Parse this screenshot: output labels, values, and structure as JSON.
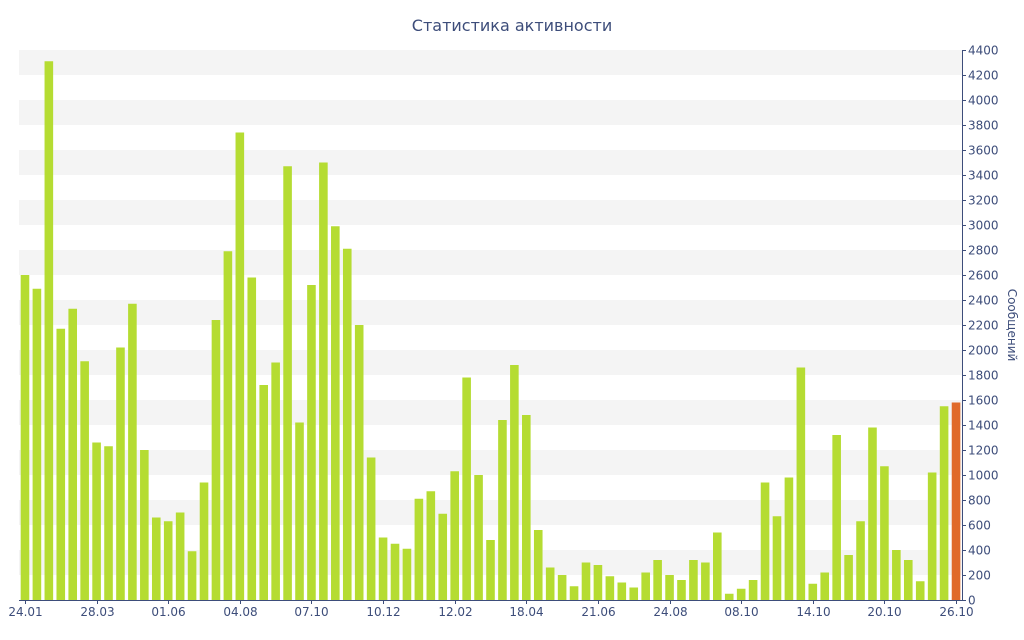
{
  "chart_data": {
    "type": "bar",
    "title": "Статистика активности",
    "xlabel": "",
    "ylabel": "Сообщений",
    "ylim": [
      0,
      4400
    ],
    "y_ticks": [
      0,
      200,
      400,
      600,
      800,
      1000,
      1200,
      1400,
      1600,
      1800,
      2000,
      2200,
      2400,
      2600,
      2800,
      3000,
      3200,
      3400,
      3600,
      3800,
      4000,
      4200,
      4400
    ],
    "x_tick_labels": [
      {
        "index": 0,
        "label": "24.01"
      },
      {
        "index": 6,
        "label": "28.03"
      },
      {
        "index": 12,
        "label": "01.06"
      },
      {
        "index": 18,
        "label": "04.08"
      },
      {
        "index": 24,
        "label": "07.10"
      },
      {
        "index": 30,
        "label": "10.12"
      },
      {
        "index": 36,
        "label": "12.02"
      },
      {
        "index": 42,
        "label": "18.04"
      },
      {
        "index": 48,
        "label": "21.06"
      },
      {
        "index": 54,
        "label": "24.08"
      },
      {
        "index": 60,
        "label": "08.10"
      },
      {
        "index": 66,
        "label": "14.10"
      },
      {
        "index": 72,
        "label": "20.10"
      },
      {
        "index": 78,
        "label": "26.10"
      }
    ],
    "values": [
      2600,
      2490,
      4310,
      2170,
      2330,
      1910,
      1260,
      1230,
      2020,
      2370,
      1200,
      660,
      630,
      700,
      390,
      940,
      2240,
      2790,
      3740,
      2580,
      1720,
      1900,
      3470,
      1420,
      2520,
      3500,
      2990,
      2810,
      2200,
      1140,
      500,
      450,
      410,
      810,
      870,
      690,
      1030,
      1780,
      1000,
      480,
      1440,
      1880,
      1480,
      560,
      260,
      200,
      110,
      300,
      280,
      190,
      140,
      100,
      220,
      320,
      200,
      160,
      320,
      300,
      540,
      50,
      90,
      160,
      940,
      670,
      980,
      1860,
      130,
      220,
      1320,
      360,
      630,
      1380,
      1070,
      400,
      320,
      150,
      1020,
      1550,
      1580
    ],
    "grid": true,
    "y_axis_position": "right",
    "colors": {
      "bar": "#b5dc32",
      "current": "#e06a2a",
      "grid_band": "#f4f4f4",
      "axis": "#3d4d7a"
    }
  }
}
